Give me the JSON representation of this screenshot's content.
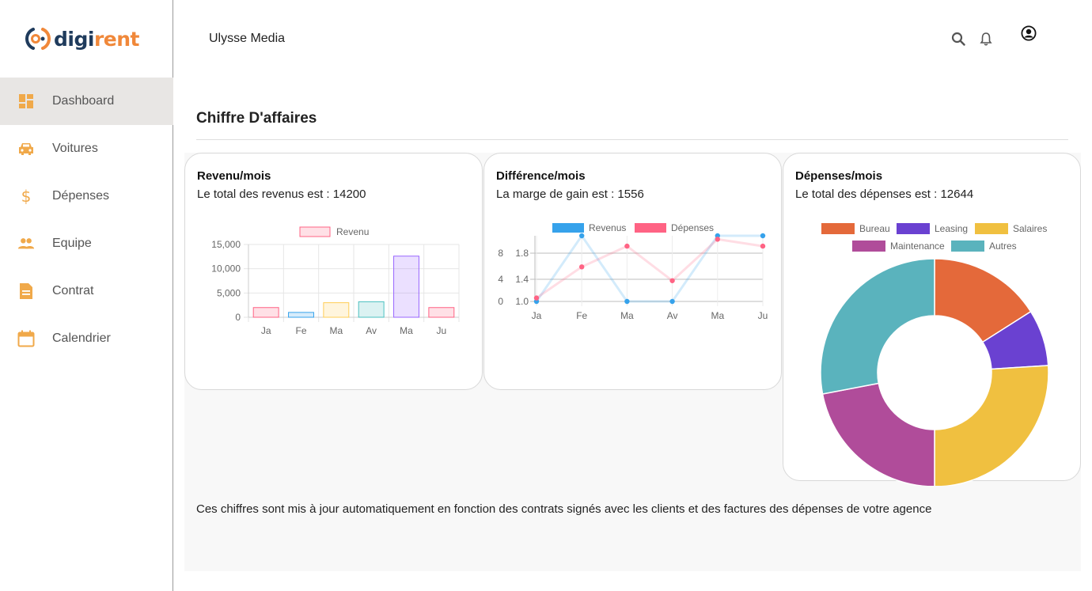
{
  "brand": {
    "name_part1": "digi",
    "name_part2": "rent"
  },
  "sidebar": {
    "items": [
      {
        "label": "Dashboard",
        "icon": "dashboard-icon",
        "active": true
      },
      {
        "label": "Voitures",
        "icon": "car-icon"
      },
      {
        "label": "Dépenses",
        "icon": "dollar-icon"
      },
      {
        "label": "Equipe",
        "icon": "people-icon"
      },
      {
        "label": "Contrat",
        "icon": "document-icon"
      },
      {
        "label": "Calendrier",
        "icon": "calendar-icon"
      }
    ]
  },
  "header": {
    "title": "Ulysse Media",
    "icons": [
      "search-icon",
      "bell-icon",
      "account-icon"
    ]
  },
  "main": {
    "title": "Chiffre D'affaires",
    "note": "Ces chiffres sont mis à jour automatiquement en fonction des contrats signés avec les clients et des factures des dépenses de votre agence"
  },
  "colors": {
    "accent": "#f0a94a",
    "brand_dark": "#1f3b5c",
    "brand_orange": "#f0883a"
  },
  "cards": [
    {
      "title": "Revenu/mois",
      "subtitle": "Le total des revenus est : 14200"
    },
    {
      "title": "Différence/mois",
      "subtitle": "La marge de gain est : 1556"
    },
    {
      "title": "Dépenses/mois",
      "subtitle": "Le total des dépenses est : 12644"
    }
  ],
  "chart_data": [
    {
      "type": "bar",
      "categories": [
        "Ja",
        "Fe",
        "Ma",
        "Av",
        "Ma",
        "Ju"
      ],
      "series": [
        {
          "name": "Revenu",
          "values": [
            2000,
            1000,
            3000,
            3200,
            12600,
            2000
          ]
        }
      ],
      "colors": [
        "#ff6384",
        "#36a2eb",
        "#ffce56",
        "#4bc0c0",
        "#9966ff",
        "#ff6384"
      ],
      "yticks": [
        "15,000",
        "10,000",
        "5,000",
        "0"
      ],
      "ylim": [
        0,
        15000
      ],
      "legend": "top",
      "grid": true
    },
    {
      "type": "line",
      "categories": [
        "Ja",
        "Fe",
        "Ma",
        "Av",
        "Ma",
        "Ju"
      ],
      "series": [
        {
          "name": "Revenus",
          "values": [
            0,
            10,
            0,
            0,
            10,
            10
          ],
          "color": "#36a2eb"
        },
        {
          "name": "Dépenses",
          "values": [
            1.05,
            1.5,
            1.8,
            1.3,
            1.9,
            1.8
          ],
          "color": "#ff6384"
        }
      ],
      "yticks_left": [
        "8",
        "4",
        "0"
      ],
      "yticks_right": [
        "1.8",
        "1.4",
        "1.0"
      ],
      "legend": "top",
      "grid": true
    },
    {
      "type": "pie",
      "style": "doughnut",
      "labels": [
        "Bureau",
        "Leasing",
        "Salaires",
        "Maintenance",
        "Autres"
      ],
      "values": [
        16,
        8,
        26,
        22,
        28
      ],
      "colors": [
        "#e4693a",
        "#6a41d1",
        "#f0c040",
        "#b04c9a",
        "#5ab3bd"
      ],
      "legend": "top"
    }
  ]
}
